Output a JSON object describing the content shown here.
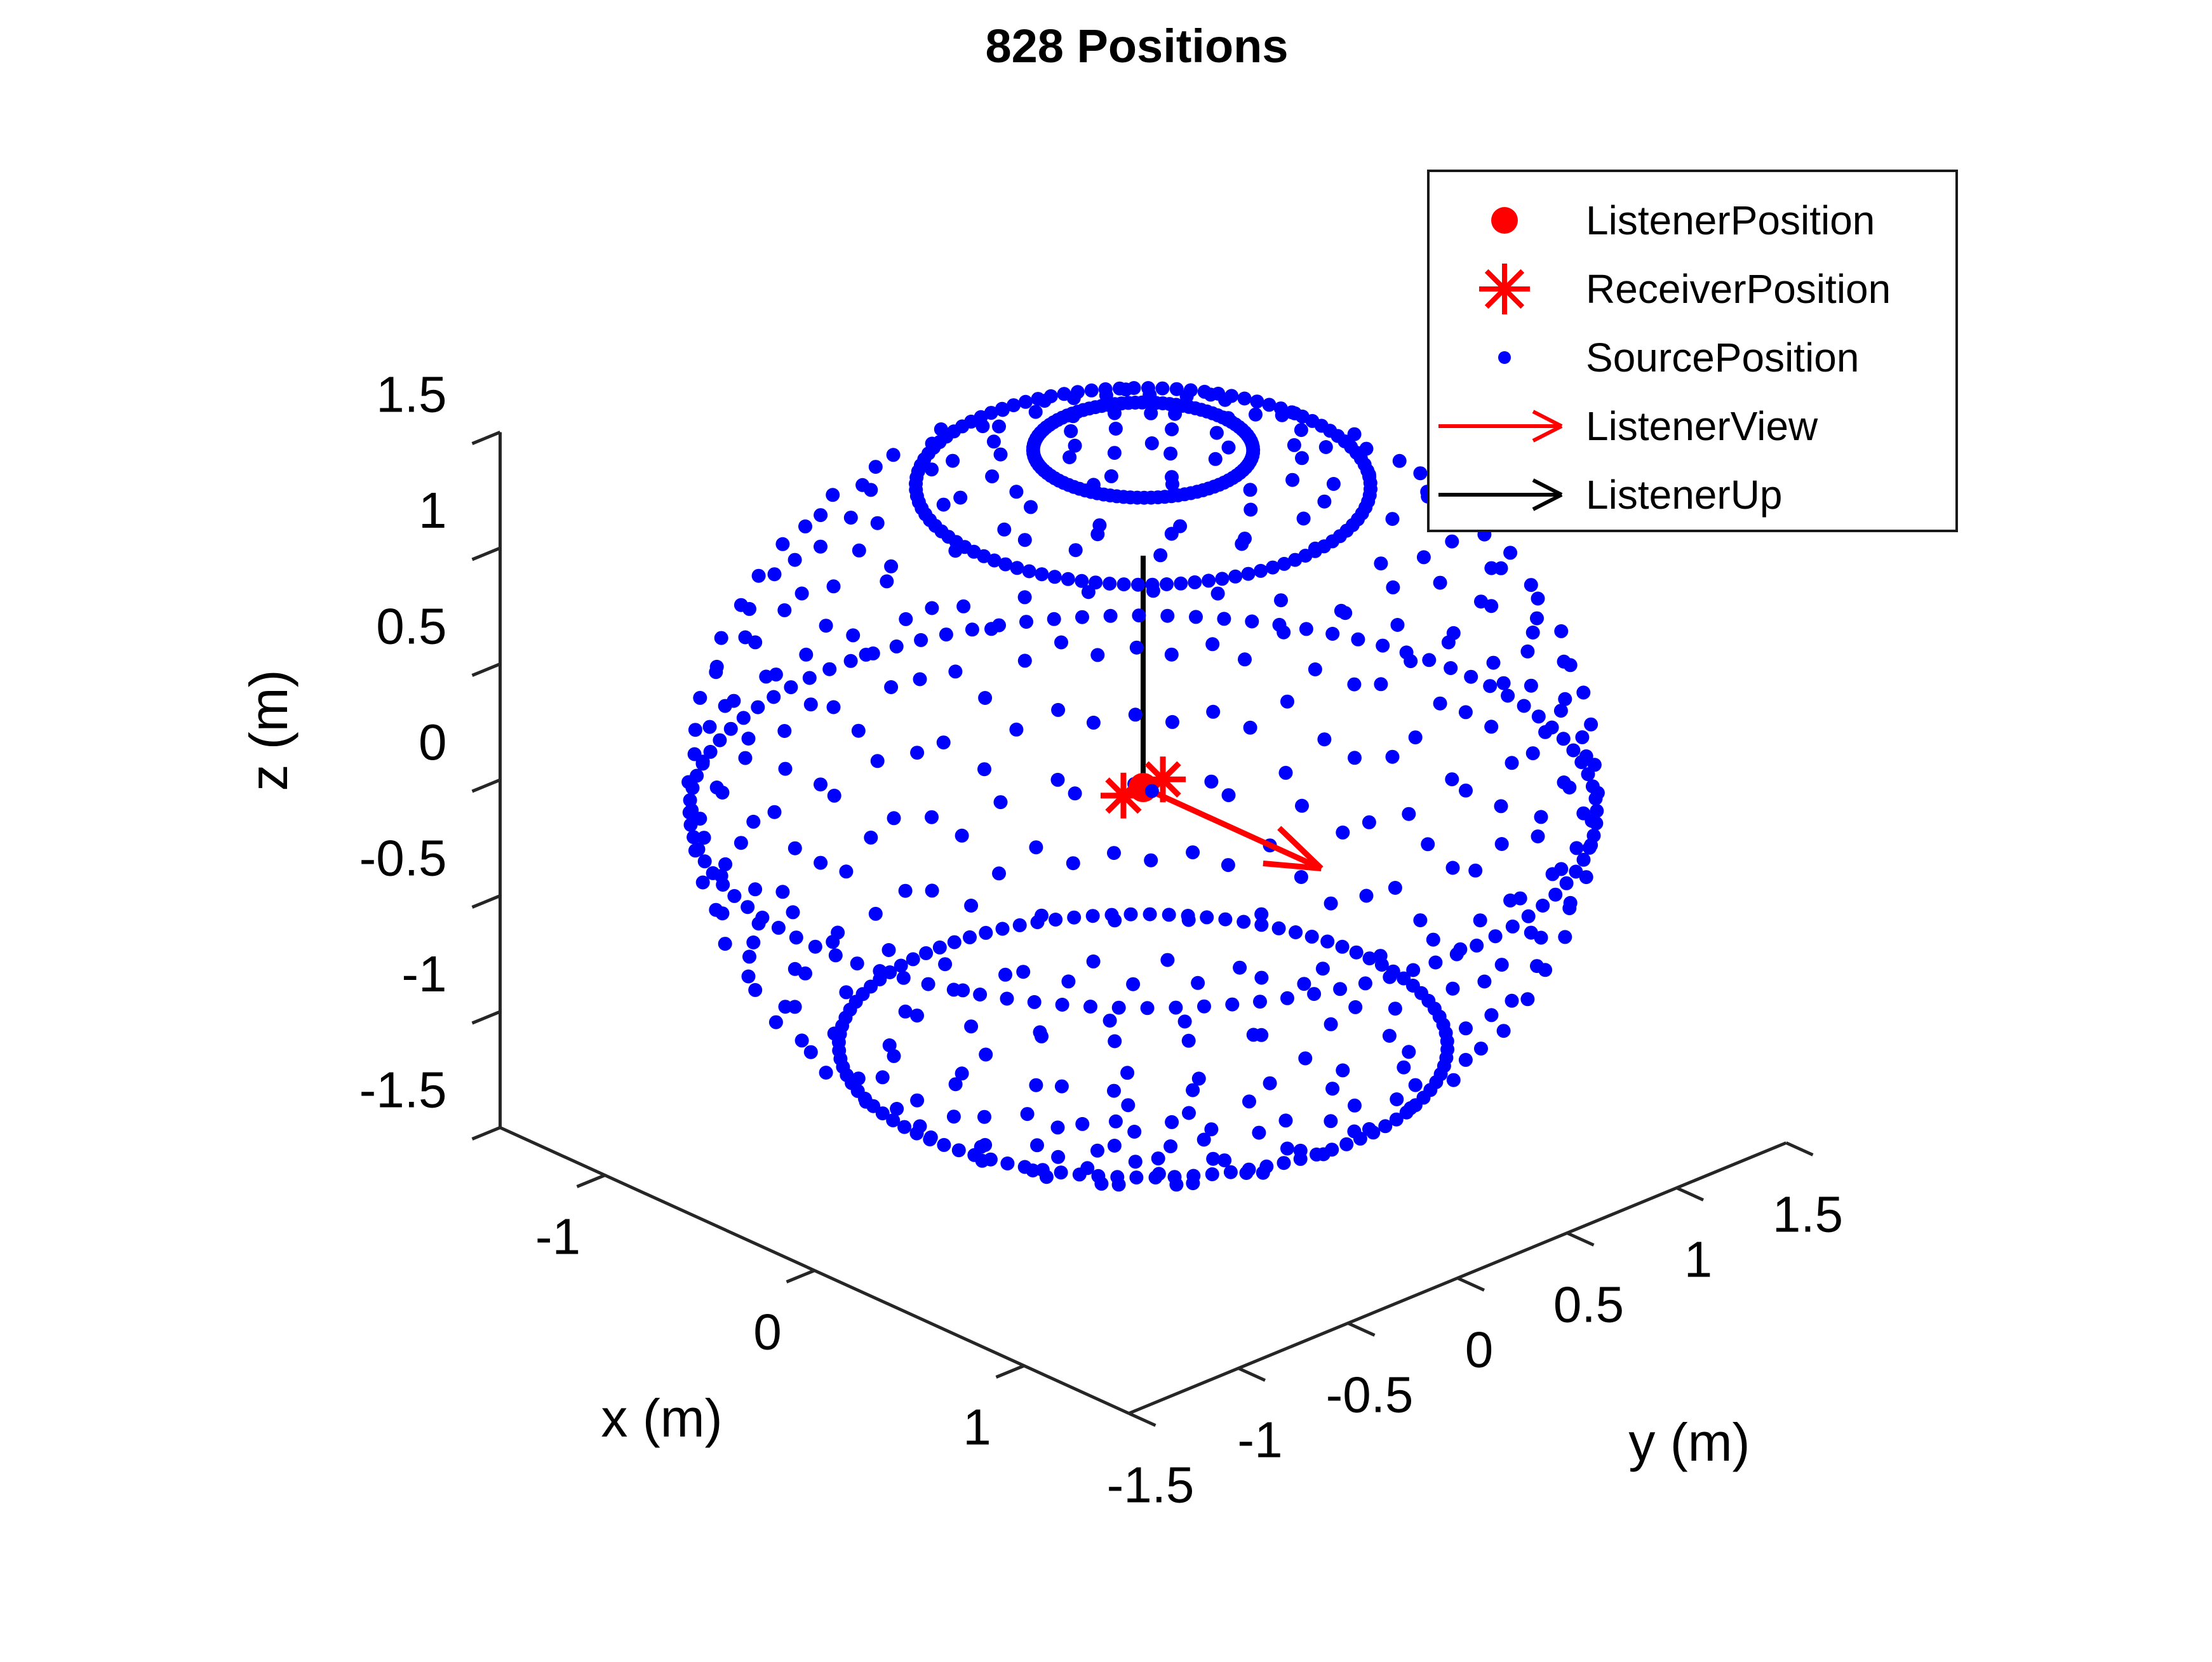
{
  "chart_data": {
    "type": "scatter",
    "subtype": "scatter3d",
    "title": "828 Positions",
    "total_positions": 828,
    "view": {
      "azimuth_deg": -37.5,
      "elevation_deg": 30,
      "projection": "orthographic"
    },
    "axes": {
      "x": {
        "label": "x (m)",
        "lim": [
          -1.5,
          1.5
        ],
        "tick_labels": [
          "-1",
          "0",
          "1"
        ]
      },
      "y": {
        "label": "y (m)",
        "lim": [
          -1.5,
          1.5
        ],
        "tick_labels": [
          "-1.5",
          "-1",
          "-0.5",
          "0",
          "0.5",
          "1",
          "1.5"
        ]
      },
      "z": {
        "label": "z (m)",
        "lim": [
          -1.5,
          1.5
        ],
        "tick_labels": [
          "-1.5",
          "-1",
          "-0.5",
          "0",
          "0.5",
          "1",
          "1.5"
        ]
      }
    },
    "series": {
      "listener_position": {
        "marker": "filled-circle",
        "color": "#ff0000",
        "points": [
          [
            0,
            0,
            0
          ]
        ]
      },
      "receiver_position": {
        "marker": "asterisk",
        "color": "#ff0000",
        "points": [
          [
            0,
            -0.09,
            0
          ],
          [
            0,
            0.09,
            0
          ]
        ]
      },
      "source_position": {
        "marker": "dot",
        "color": "#0000ff",
        "sphere": {
          "center": [
            0,
            0,
            0
          ],
          "radius_m": 1.5,
          "total_points": 828,
          "rings": [
            {
              "elevation_deg": 76,
              "n": 100
            },
            {
              "elevation_deg": 60,
              "n": 100
            },
            {
              "elevation_deg": -4,
              "n": 100
            },
            {
              "elevation_deg": -48,
              "n": 100
            },
            {
              "elevation_deg": 85,
              "n": 4
            },
            {
              "elevation_deg": 80,
              "n": 8
            },
            {
              "elevation_deg": 70,
              "n": 12
            },
            {
              "elevation_deg": 65,
              "n": 14
            },
            {
              "elevation_deg": 50,
              "n": 24
            },
            {
              "elevation_deg": 40,
              "n": 28
            },
            {
              "elevation_deg": 30,
              "n": 32
            },
            {
              "elevation_deg": 20,
              "n": 34
            },
            {
              "elevation_deg": 10,
              "n": 38
            },
            {
              "elevation_deg": 0,
              "n": 44
            },
            {
              "elevation_deg": -10,
              "n": 38
            },
            {
              "elevation_deg": -20,
              "n": 34
            },
            {
              "elevation_deg": -30,
              "n": 32
            },
            {
              "elevation_deg": -40,
              "n": 28
            },
            {
              "elevation_deg": -55,
              "n": 22
            },
            {
              "elevation_deg": -65,
              "n": 16
            },
            {
              "elevation_deg": -75,
              "n": 10
            },
            {
              "elevation_deg": -82,
              "n": 6
            },
            {
              "elevation_deg": -85,
              "n": 4
            }
          ]
        }
      },
      "listener_view": {
        "type": "vector",
        "color": "#ff0000",
        "from": [
          0,
          0,
          0
        ],
        "to": [
          0.85,
          0,
          0
        ]
      },
      "listener_up": {
        "type": "vector",
        "color": "#000000",
        "from": [
          0,
          0,
          0
        ],
        "to": [
          0,
          0,
          1
        ]
      }
    },
    "legend": {
      "position": "top-right",
      "items": [
        {
          "label": "ListenerPosition",
          "marker": "filled-circle",
          "color": "#ff0000"
        },
        {
          "label": "ReceiverPosition",
          "marker": "asterisk",
          "color": "#ff0000"
        },
        {
          "label": "SourcePosition",
          "marker": "dot",
          "color": "#0000ff"
        },
        {
          "label": "ListenerView",
          "marker": "arrow",
          "color": "#ff0000"
        },
        {
          "label": "ListenerUp",
          "marker": "arrow",
          "color": "#000000"
        }
      ]
    },
    "colors": {
      "source": "#0000ff",
      "listener": "#ff0000",
      "receiver": "#ff0000",
      "view_vector": "#ff0000",
      "up_vector": "#000000",
      "axis": "#262626",
      "text": "#000000",
      "background": "#ffffff"
    }
  }
}
